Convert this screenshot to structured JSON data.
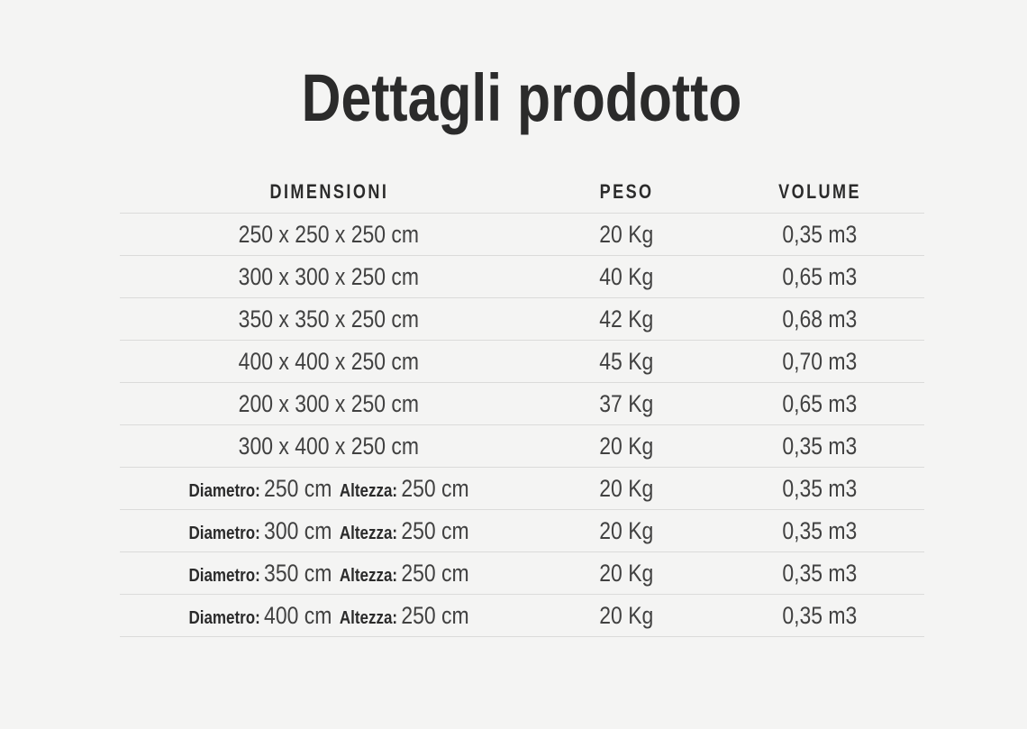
{
  "page": {
    "title": "Dettagli prodotto",
    "background_color": "#f4f4f3",
    "title_color": "#2b2b2b",
    "text_color": "#414141",
    "divider_color": "#dbdbda"
  },
  "table": {
    "headers": [
      {
        "key": "dimensioni",
        "label": "DIMENSIONI"
      },
      {
        "key": "peso",
        "label": "PESO"
      },
      {
        "key": "volume",
        "label": "VOLUME"
      }
    ],
    "rows": [
      {
        "dimensioni": "250 x 250 x 250 cm",
        "peso": "20 Kg",
        "volume": "0,35 m3"
      },
      {
        "dimensioni": "300 x 300 x 250 cm",
        "peso": "40 Kg",
        "volume": "0,65 m3"
      },
      {
        "dimensioni": "350 x 350 x 250 cm",
        "peso": "42 Kg",
        "volume": "0,68 m3"
      },
      {
        "dimensioni": "400 x 400 x 250 cm",
        "peso": "45 Kg",
        "volume": "0,70 m3"
      },
      {
        "dimensioni": "200 x 300 x 250 cm",
        "peso": "37 Kg",
        "volume": "0,65 m3"
      },
      {
        "dimensioni": "300 x 400 x 250 cm",
        "peso": "20 Kg",
        "volume": "0,35 m3"
      },
      {
        "dimensioni_parts": [
          {
            "label": "Diametro:",
            "value": "250 cm"
          },
          {
            "label": "Altezza:",
            "value": "250 cm"
          }
        ],
        "peso": "20 Kg",
        "volume": "0,35 m3"
      },
      {
        "dimensioni_parts": [
          {
            "label": "Diametro:",
            "value": "300 cm"
          },
          {
            "label": "Altezza:",
            "value": "250 cm"
          }
        ],
        "peso": "20 Kg",
        "volume": "0,35 m3"
      },
      {
        "dimensioni_parts": [
          {
            "label": "Diametro:",
            "value": "350 cm"
          },
          {
            "label": "Altezza:",
            "value": "250 cm"
          }
        ],
        "peso": "20 Kg",
        "volume": "0,35 m3"
      },
      {
        "dimensioni_parts": [
          {
            "label": "Diametro:",
            "value": "400 cm"
          },
          {
            "label": "Altezza:",
            "value": "250 cm"
          }
        ],
        "peso": "20 Kg",
        "volume": "0,35 m3"
      }
    ]
  }
}
